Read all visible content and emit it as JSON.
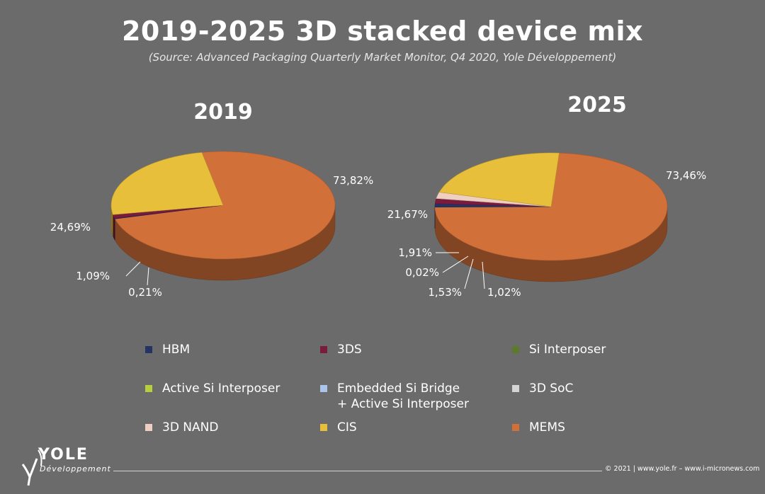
{
  "title": "2019-2025 3D stacked device mix",
  "subtitle": "(Source: Advanced Packaging Quarterly Market Monitor, Q4 2020, Yole Développement)",
  "chart_data": [
    {
      "type": "pie",
      "title": "2019",
      "slices": [
        {
          "category": "MEMS",
          "value": 73.82,
          "label": "73,82%"
        },
        {
          "category": "HBM",
          "value": 0.21,
          "label": "0,21%"
        },
        {
          "category": "3DS",
          "value": 1.09,
          "label": "1,09%"
        },
        {
          "category": "CIS",
          "value": 24.69,
          "label": "24,69%"
        }
      ]
    },
    {
      "type": "pie",
      "title": "2025",
      "slices": [
        {
          "category": "MEMS",
          "value": 73.46,
          "label": "73,46%"
        },
        {
          "category": "HBM",
          "value": 1.02,
          "label": "1,02%"
        },
        {
          "category": "3DS",
          "value": 1.53,
          "label": "1,53%"
        },
        {
          "category": "3D SoC",
          "value": 0.02,
          "label": "0,02%"
        },
        {
          "category": "3D NAND",
          "value": 1.91,
          "label": "1,91%"
        },
        {
          "category": "CIS",
          "value": 21.67,
          "label": "21,67%"
        }
      ]
    }
  ],
  "legend": [
    {
      "label": "HBM",
      "color": "#233366"
    },
    {
      "label": "3DS",
      "color": "#7a1a3c"
    },
    {
      "label": "Si Interposer",
      "color": "#5b7a2a"
    },
    {
      "label": "Active Si Interposer",
      "color": "#b7cf3f"
    },
    {
      "label": "Embedded Si Bridge\n+ Active Si Interposer",
      "color": "#aac4ea"
    },
    {
      "label": "3D SoC",
      "color": "#d4d4d4"
    },
    {
      "label": "3D NAND",
      "color": "#efcfbf"
    },
    {
      "label": "CIS",
      "color": "#e8bf3a"
    },
    {
      "label": "MEMS",
      "color": "#d2703a"
    }
  ],
  "logo": {
    "name": "YOLE",
    "sub": "Développement"
  },
  "footer": "© 2021 | www.yole.fr – www.i-micronews.com"
}
